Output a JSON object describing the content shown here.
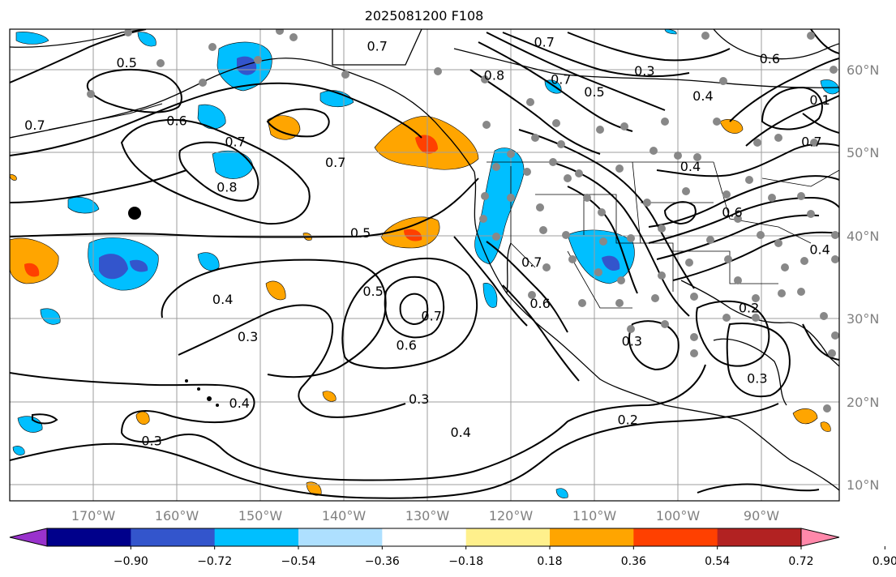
{
  "title": "2025081200 F108",
  "map": {
    "lon_ticks": [
      "170°W",
      "160°W",
      "150°W",
      "140°W",
      "130°W",
      "120°W",
      "110°W",
      "100°W",
      "90°W"
    ],
    "lat_ticks": [
      "60°N",
      "50°N",
      "40°N",
      "30°N",
      "20°N",
      "10°N"
    ],
    "contour_labels": [
      {
        "text": "0.5",
        "lon": -166,
        "lat": 60.5
      },
      {
        "text": "0.7",
        "lon": -177,
        "lat": 53
      },
      {
        "text": "0.6",
        "lon": -160,
        "lat": 53.5
      },
      {
        "text": "0.7",
        "lon": -136,
        "lat": 62.5
      },
      {
        "text": "0.7",
        "lon": -153,
        "lat": 51
      },
      {
        "text": "0.7",
        "lon": -141,
        "lat": 48.5
      },
      {
        "text": "0.8",
        "lon": -154,
        "lat": 45.5
      },
      {
        "text": "0.5",
        "lon": -138,
        "lat": 40
      },
      {
        "text": "0.4",
        "lon": -154.5,
        "lat": 32
      },
      {
        "text": "0.3",
        "lon": -151.5,
        "lat": 27.5
      },
      {
        "text": "0.5",
        "lon": -136.5,
        "lat": 33
      },
      {
        "text": "0.7",
        "lon": -129.5,
        "lat": 30
      },
      {
        "text": "0.6",
        "lon": -132.5,
        "lat": 26.5
      },
      {
        "text": "0.3",
        "lon": -131,
        "lat": 20
      },
      {
        "text": "0.4",
        "lon": -152.5,
        "lat": 19.5
      },
      {
        "text": "0.3",
        "lon": -163,
        "lat": 15
      },
      {
        "text": "0.4",
        "lon": -126,
        "lat": 16
      },
      {
        "text": "0.2",
        "lon": -106,
        "lat": 17.5
      },
      {
        "text": "0.8",
        "lon": -122,
        "lat": 59
      },
      {
        "text": "0.7",
        "lon": -116,
        "lat": 63
      },
      {
        "text": "0.7",
        "lon": -114,
        "lat": 58.5
      },
      {
        "text": "0.5",
        "lon": -110,
        "lat": 57
      },
      {
        "text": "0.3",
        "lon": -104,
        "lat": 59.5
      },
      {
        "text": "0.4",
        "lon": -97,
        "lat": 56.5
      },
      {
        "text": "0.6",
        "lon": -89,
        "lat": 61
      },
      {
        "text": "0.1",
        "lon": -83,
        "lat": 56
      },
      {
        "text": "0.7",
        "lon": -84,
        "lat": 51
      },
      {
        "text": "0.4",
        "lon": -98.5,
        "lat": 48
      },
      {
        "text": "0.6",
        "lon": -93.5,
        "lat": 42.5
      },
      {
        "text": "0.7",
        "lon": -117.5,
        "lat": 36.5
      },
      {
        "text": "0.6",
        "lon": -116.5,
        "lat": 31.5
      },
      {
        "text": "0.3",
        "lon": -105.5,
        "lat": 27
      },
      {
        "text": "0.2",
        "lon": -91.5,
        "lat": 31
      },
      {
        "text": "0.3",
        "lon": -90.5,
        "lat": 22.5
      },
      {
        "text": "0.4",
        "lon": -83,
        "lat": 38
      }
    ]
  },
  "colorbar": {
    "tick_labels": [
      "−0.90",
      "−0.72",
      "−0.54",
      "−0.36",
      "−0.18",
      "0.18",
      "0.36",
      "0.54",
      "0.72",
      "0.90"
    ],
    "colors": [
      "#9932cc",
      "#00008b",
      "#3355cc",
      "#00bfff",
      "#aee0ff",
      "#ffffff",
      "#fff08c",
      "#ffa500",
      "#ff4000",
      "#b22222",
      "#ff88aa"
    ],
    "extend": "both"
  }
}
